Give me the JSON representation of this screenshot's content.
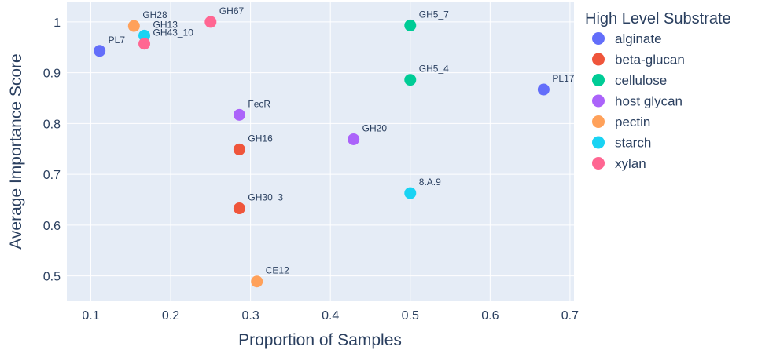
{
  "chart_data": {
    "type": "scatter",
    "title": "",
    "xlabel": "Proportion of Samples",
    "ylabel": "Average Importance Score",
    "xlim": [
      0.07,
      0.705
    ],
    "ylim": [
      0.45,
      1.04
    ],
    "x_ticks": [
      0.1,
      0.2,
      0.3,
      0.4,
      0.5,
      0.6,
      0.7
    ],
    "y_ticks": [
      0.5,
      0.6,
      0.7,
      0.8,
      0.9,
      1
    ],
    "x_tick_labels": [
      "0.1",
      "0.2",
      "0.3",
      "0.4",
      "0.5",
      "0.6",
      "0.7"
    ],
    "y_tick_labels": [
      "0.5",
      "0.6",
      "0.7",
      "0.8",
      "0.9",
      "1"
    ],
    "grid": true,
    "legend_title": "High Level Substrate",
    "legend_position": "right",
    "series": [
      {
        "name": "alginate",
        "color": "#636efa",
        "points": [
          {
            "label": "PL7",
            "x": 0.111,
            "y": 0.943
          },
          {
            "label": "PL17",
            "x": 0.667,
            "y": 0.867
          }
        ]
      },
      {
        "name": "beta-glucan",
        "color": "#ef553b",
        "points": [
          {
            "label": "GH16",
            "x": 0.286,
            "y": 0.749
          },
          {
            "label": "GH30_3",
            "x": 0.286,
            "y": 0.633
          }
        ]
      },
      {
        "name": "cellulose",
        "color": "#00cc96",
        "points": [
          {
            "label": "GH5_7",
            "x": 0.5,
            "y": 0.993
          },
          {
            "label": "GH5_4",
            "x": 0.5,
            "y": 0.886
          }
        ]
      },
      {
        "name": "host glycan",
        "color": "#ab63fa",
        "points": [
          {
            "label": "FecR",
            "x": 0.286,
            "y": 0.817
          },
          {
            "label": "GH20",
            "x": 0.429,
            "y": 0.769
          }
        ]
      },
      {
        "name": "pectin",
        "color": "#ffa15a",
        "points": [
          {
            "label": "GH28",
            "x": 0.154,
            "y": 0.992
          },
          {
            "label": "CE12",
            "x": 0.308,
            "y": 0.489
          }
        ]
      },
      {
        "name": "starch",
        "color": "#19d3f3",
        "points": [
          {
            "label": "GH13",
            "x": 0.167,
            "y": 0.973
          },
          {
            "label": "8.A.9",
            "x": 0.5,
            "y": 0.663
          }
        ]
      },
      {
        "name": "xylan",
        "color": "#ff6692",
        "points": [
          {
            "label": "GH67",
            "x": 0.25,
            "y": 1.0
          },
          {
            "label": "GH43_10",
            "x": 0.167,
            "y": 0.957
          }
        ]
      }
    ]
  }
}
